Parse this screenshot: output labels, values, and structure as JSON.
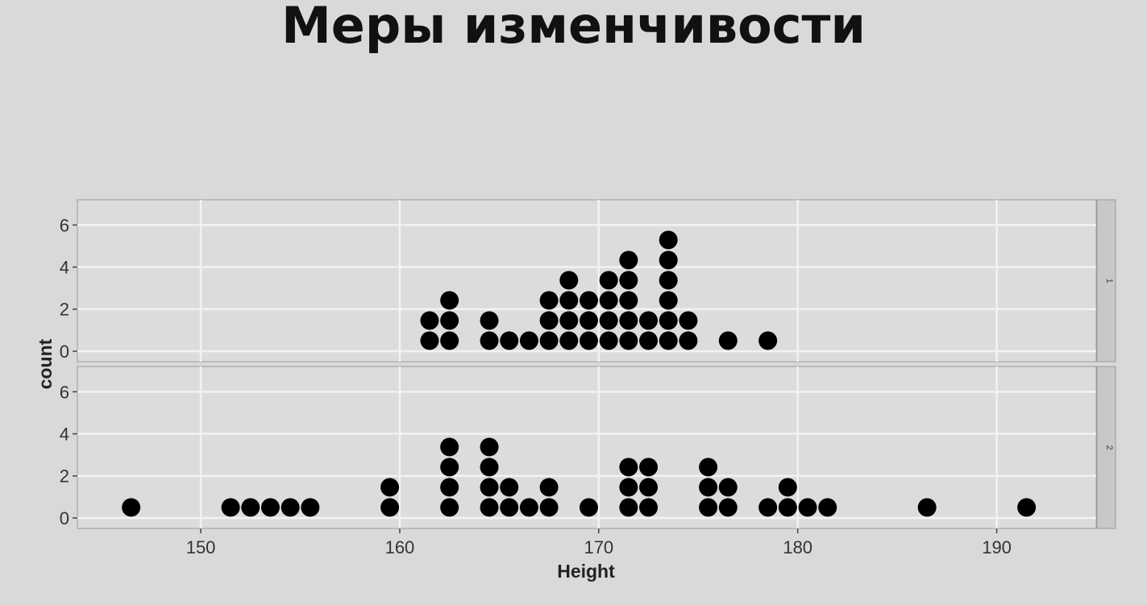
{
  "slide": {
    "title": "Меры изменчивости"
  },
  "chart_data": {
    "type": "dotplot",
    "xlabel": "Height",
    "ylabel": "count",
    "xlim": [
      143.8,
      195
    ],
    "xticks": [
      150,
      160,
      170,
      180,
      190
    ],
    "ylim": [
      -0.5,
      7.2
    ],
    "yticks": [
      0,
      2,
      4,
      6
    ],
    "grid": true,
    "facets": [
      {
        "label": "1",
        "bins": [
          {
            "x": 161.5,
            "count": 2
          },
          {
            "x": 162.5,
            "count": 3
          },
          {
            "x": 164.5,
            "count": 2
          },
          {
            "x": 165.5,
            "count": 1
          },
          {
            "x": 166.5,
            "count": 1
          },
          {
            "x": 167.5,
            "count": 3
          },
          {
            "x": 168.5,
            "count": 4
          },
          {
            "x": 169.5,
            "count": 3
          },
          {
            "x": 170.5,
            "count": 4
          },
          {
            "x": 171.5,
            "count": 5
          },
          {
            "x": 172.5,
            "count": 2
          },
          {
            "x": 173.5,
            "count": 6
          },
          {
            "x": 174.5,
            "count": 2
          },
          {
            "x": 176.5,
            "count": 1
          },
          {
            "x": 178.5,
            "count": 1
          }
        ]
      },
      {
        "label": "2",
        "bins": [
          {
            "x": 146.5,
            "count": 1
          },
          {
            "x": 151.5,
            "count": 1
          },
          {
            "x": 152.5,
            "count": 1
          },
          {
            "x": 153.5,
            "count": 1
          },
          {
            "x": 154.5,
            "count": 1
          },
          {
            "x": 155.5,
            "count": 1
          },
          {
            "x": 159.5,
            "count": 2
          },
          {
            "x": 162.5,
            "count": 4
          },
          {
            "x": 164.5,
            "count": 4
          },
          {
            "x": 165.5,
            "count": 2
          },
          {
            "x": 166.5,
            "count": 1
          },
          {
            "x": 167.5,
            "count": 2
          },
          {
            "x": 169.5,
            "count": 1
          },
          {
            "x": 171.5,
            "count": 3
          },
          {
            "x": 172.5,
            "count": 3
          },
          {
            "x": 175.5,
            "count": 3
          },
          {
            "x": 176.5,
            "count": 2
          },
          {
            "x": 178.5,
            "count": 1
          },
          {
            "x": 179.5,
            "count": 2
          },
          {
            "x": 180.5,
            "count": 1
          },
          {
            "x": 181.5,
            "count": 1
          },
          {
            "x": 186.5,
            "count": 1
          },
          {
            "x": 191.5,
            "count": 1
          }
        ]
      }
    ],
    "colors": {
      "background": "#d9d9d9",
      "panel": "#dcdcdc",
      "grid": "#f2f2f2",
      "dot": "#000000",
      "strip": "#c8c8c8",
      "text": "#222222"
    }
  }
}
